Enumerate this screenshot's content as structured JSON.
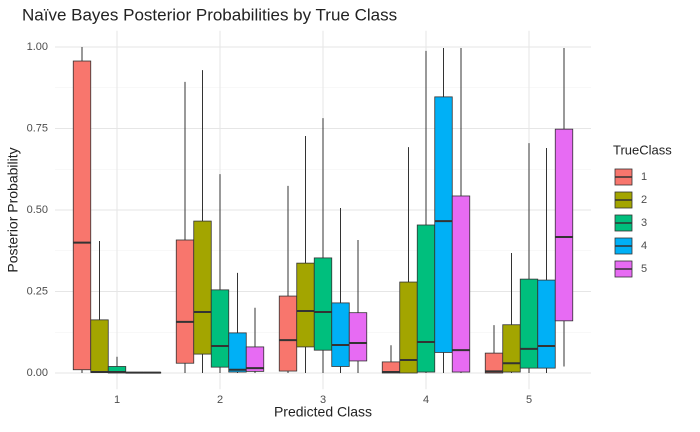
{
  "chart_data": {
    "type": "boxplot",
    "title": "Naïve Bayes Posterior Probabilities by True Class",
    "x_label": "Predicted Class",
    "y_label": "Posterior Probability",
    "legend_title": "TrueClass",
    "legend_position": "right",
    "grid": true,
    "categories": [
      "1",
      "2",
      "3",
      "4",
      "5"
    ],
    "ylim": [
      -0.05,
      1.05
    ],
    "yticks": [
      {
        "value": 0,
        "label": "0.00"
      },
      {
        "value": 0.25,
        "label": "0.25"
      },
      {
        "value": 0.5,
        "label": "0.50"
      },
      {
        "value": 0.75,
        "label": "0.75"
      },
      {
        "value": 1,
        "label": "1.00"
      }
    ],
    "series": [
      {
        "name": "1",
        "color": "#F8766D",
        "min": [
          0,
          0,
          0,
          0,
          0
        ],
        "q1": [
          0.01,
          0.03,
          0.006,
          0,
          0
        ],
        "median": [
          0.4,
          0.157,
          0.101,
          0.003,
          0.005
        ],
        "q3": [
          0.957,
          0.408,
          0.236,
          0.034,
          0.061
        ],
        "max": [
          1.0,
          0.893,
          0.574,
          0.085,
          0.147
        ]
      },
      {
        "name": "2",
        "color": "#A3A500",
        "min": [
          0,
          0,
          0,
          0,
          0
        ],
        "q1": [
          0.002,
          0.058,
          0.08,
          0,
          0.003
        ],
        "median": [
          0.003,
          0.187,
          0.19,
          0.04,
          0.03
        ],
        "q3": [
          0.163,
          0.466,
          0.337,
          0.279,
          0.148
        ],
        "max": [
          0.405,
          0.929,
          0.727,
          0.693,
          0.368
        ]
      },
      {
        "name": "3",
        "color": "#00BF7D",
        "min": [
          0,
          0,
          0,
          0,
          0
        ],
        "q1": [
          0.0,
          0.018,
          0.07,
          0.003,
          0.015
        ],
        "median": [
          0.003,
          0.083,
          0.187,
          0.095,
          0.074
        ],
        "q3": [
          0.02,
          0.255,
          0.353,
          0.454,
          0.288
        ],
        "max": [
          0.05,
          0.61,
          0.782,
          0.988,
          0.705
        ]
      },
      {
        "name": "4",
        "color": "#00B0F6",
        "min": [
          0,
          0,
          0,
          0,
          0
        ],
        "q1": [
          0.0,
          0.003,
          0.02,
          0.063,
          0.015
        ],
        "median": [
          0.001,
          0.01,
          0.086,
          0.466,
          0.083
        ],
        "q3": [
          0.002,
          0.123,
          0.215,
          0.847,
          0.285
        ],
        "max": [
          0.003,
          0.307,
          0.506,
          0.997,
          0.69
        ]
      },
      {
        "name": "5",
        "color": "#E76BF3",
        "min": [
          0,
          0,
          0,
          0,
          0.02
        ],
        "q1": [
          0.0,
          0.005,
          0.037,
          0.003,
          0.16
        ],
        "median": [
          0.001,
          0.015,
          0.092,
          0.07,
          0.417
        ],
        "q3": [
          0.002,
          0.08,
          0.185,
          0.543,
          0.748
        ],
        "max": [
          0.003,
          0.2,
          0.408,
          0.997,
          0.997
        ]
      }
    ]
  }
}
